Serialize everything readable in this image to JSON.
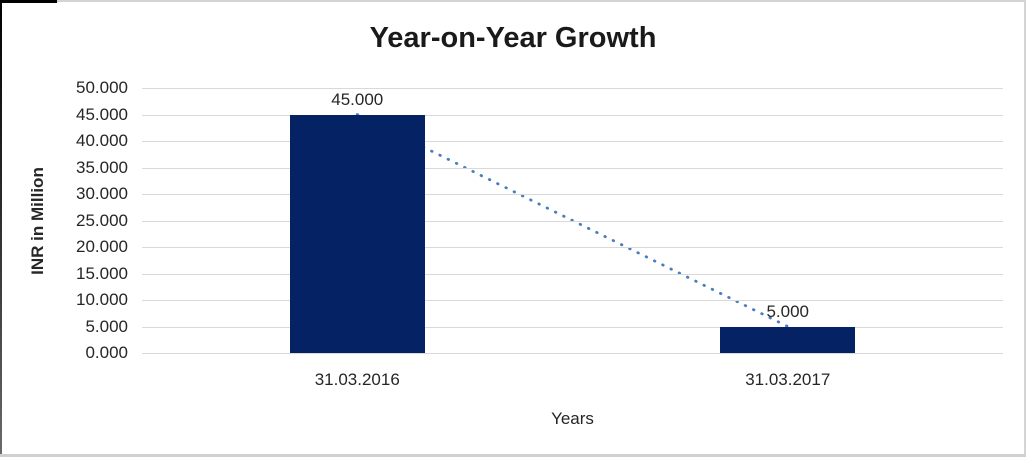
{
  "chart_data": {
    "type": "bar",
    "title": "Year-on-Year Growth",
    "xlabel": "Years",
    "ylabel": "INR in Million",
    "categories": [
      "31.03.2016",
      "31.03.2017"
    ],
    "values": [
      45000,
      5000
    ],
    "value_labels": [
      "45.000",
      "5.000"
    ],
    "ylim": [
      0,
      50000
    ],
    "yticks": [
      50000,
      45000,
      40000,
      35000,
      30000,
      25000,
      20000,
      15000,
      10000,
      5000,
      0
    ],
    "ytick_labels": [
      "50.000",
      "45.000",
      "40.000",
      "35.000",
      "30.000",
      "25.000",
      "20.000",
      "15.000",
      "10.000",
      "5.000",
      "0.000"
    ],
    "grid": true,
    "legend": false,
    "trendline": {
      "style": "dotted",
      "connects": "tops of bars from 31.03.2016 to 31.03.2017"
    },
    "colors": {
      "bar": "#052264",
      "trendline": "#4a7ebb",
      "gridline": "#d9d9d9",
      "title_text": "#1a1a1a",
      "axis_text": "#262626"
    }
  }
}
